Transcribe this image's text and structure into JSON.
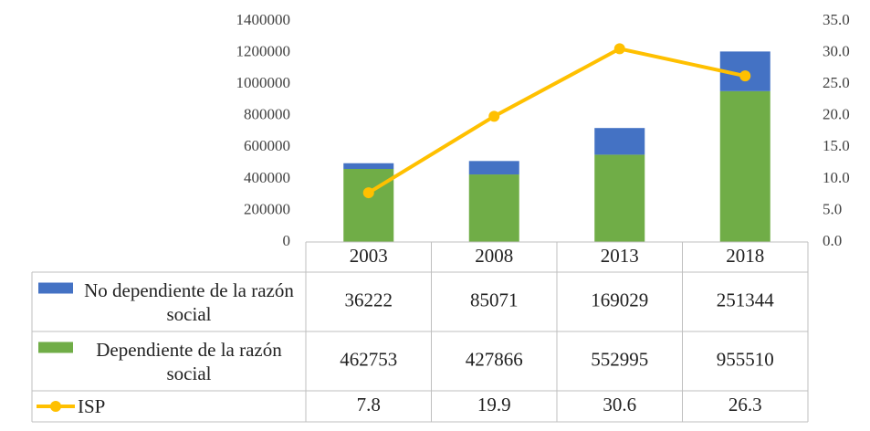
{
  "chart_data": {
    "type": "bar",
    "stacked": true,
    "categories": [
      "2003",
      "2008",
      "2013",
      "2018"
    ],
    "series": [
      {
        "name": "No dependiente de la razón social",
        "color": "#4472c4",
        "type": "bar",
        "values": [
          36222,
          85071,
          169029,
          251344
        ]
      },
      {
        "name": "Dependiente de la razón social",
        "color": "#70ad47",
        "type": "bar",
        "values": [
          462753,
          427866,
          552995,
          955510
        ]
      },
      {
        "name": "ISP",
        "color": "#ffc000",
        "type": "line",
        "axis": "y2",
        "values": [
          7.8,
          19.9,
          30.6,
          26.3
        ]
      }
    ],
    "ylim": [
      0,
      1400000
    ],
    "yticks": [
      0,
      200000,
      400000,
      600000,
      800000,
      1000000,
      1200000,
      1400000
    ],
    "y2lim": [
      0,
      35
    ],
    "y2ticks": [
      {
        "value": 0,
        "label": "0.0"
      },
      {
        "value": 5,
        "label": "5.0"
      },
      {
        "value": 10,
        "label": "10.0"
      },
      {
        "value": 15,
        "label": "15.0"
      },
      {
        "value": 20,
        "label": "20.0"
      },
      {
        "value": 25,
        "label": "25.0"
      },
      {
        "value": 30,
        "label": "30.0"
      },
      {
        "value": 35,
        "label": "35.0"
      }
    ],
    "grid": false,
    "data_table": true
  }
}
